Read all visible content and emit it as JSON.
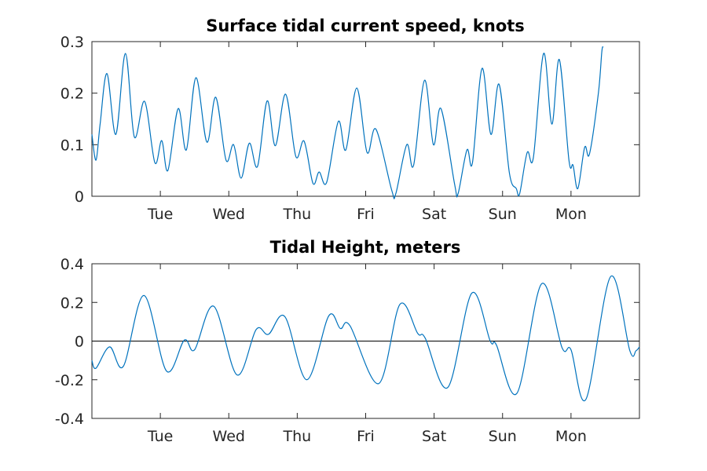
{
  "colors": {
    "series": "#0072bd",
    "axis": "#262626",
    "zero_line": "#000000"
  },
  "chart_data": [
    {
      "type": "line",
      "title": "Surface tidal current speed, knots",
      "xlabel": "",
      "ylabel": "",
      "x_unit": "days",
      "xlim": [
        0,
        8
      ],
      "ylim": [
        0,
        0.3
      ],
      "y_ticks": [
        0,
        0.1,
        0.2,
        0.3
      ],
      "y_tick_labels": [
        "0",
        "0.1",
        "0.2",
        "0.3"
      ],
      "x_ticks": [
        1,
        2,
        3,
        4,
        5,
        6,
        7
      ],
      "x_tick_labels": [
        "Tue",
        "Wed",
        "Thu",
        "Fri",
        "Sat",
        "Sun",
        "Mon"
      ],
      "grid": false,
      "series": [
        {
          "points": [
            [
              0,
              0.12
            ],
            [
              0.06,
              0.07
            ],
            [
              0.12,
              0.14
            ],
            [
              0.22,
              0.238
            ],
            [
              0.35,
              0.12
            ],
            [
              0.49,
              0.277
            ],
            [
              0.62,
              0.115
            ],
            [
              0.77,
              0.184
            ],
            [
              0.92,
              0.065
            ],
            [
              1.02,
              0.108
            ],
            [
              1.11,
              0.05
            ],
            [
              1.26,
              0.17
            ],
            [
              1.38,
              0.09
            ],
            [
              1.52,
              0.23
            ],
            [
              1.68,
              0.105
            ],
            [
              1.81,
              0.192
            ],
            [
              1.96,
              0.07
            ],
            [
              2.07,
              0.1
            ],
            [
              2.18,
              0.035
            ],
            [
              2.3,
              0.103
            ],
            [
              2.42,
              0.058
            ],
            [
              2.56,
              0.185
            ],
            [
              2.68,
              0.098
            ],
            [
              2.83,
              0.198
            ],
            [
              2.98,
              0.077
            ],
            [
              3.1,
              0.107
            ],
            [
              3.23,
              0.025
            ],
            [
              3.32,
              0.047
            ],
            [
              3.43,
              0.027
            ],
            [
              3.6,
              0.145
            ],
            [
              3.71,
              0.09
            ],
            [
              3.87,
              0.21
            ],
            [
              4.02,
              0.085
            ],
            [
              4.15,
              0.13
            ],
            [
              4.38,
              0.012
            ],
            [
              4.44,
              0.005
            ],
            [
              4.6,
              0.1
            ],
            [
              4.7,
              0.06
            ],
            [
              4.86,
              0.225
            ],
            [
              4.99,
              0.1
            ],
            [
              5.1,
              0.17
            ],
            [
              5.3,
              0.023
            ],
            [
              5.35,
              0.005
            ],
            [
              5.48,
              0.09
            ],
            [
              5.56,
              0.065
            ],
            [
              5.7,
              0.248
            ],
            [
              5.83,
              0.12
            ],
            [
              5.95,
              0.217
            ],
            [
              6.1,
              0.045
            ],
            [
              6.2,
              0.015
            ],
            [
              6.25,
              0.005
            ],
            [
              6.36,
              0.085
            ],
            [
              6.45,
              0.075
            ],
            [
              6.6,
              0.277
            ],
            [
              6.72,
              0.14
            ],
            [
              6.83,
              0.265
            ],
            [
              6.97,
              0.07
            ],
            [
              7.03,
              0.06
            ],
            [
              7.1,
              0.015
            ],
            [
              7.2,
              0.095
            ],
            [
              7.27,
              0.082
            ],
            [
              7.4,
              0.2
            ],
            [
              7.45,
              0.28
            ],
            [
              7.47,
              0.29
            ]
          ]
        }
      ]
    },
    {
      "type": "line",
      "title": "Tidal Height, meters",
      "xlabel": "",
      "ylabel": "",
      "x_unit": "days",
      "xlim": [
        0,
        8
      ],
      "ylim": [
        -0.4,
        0.4
      ],
      "y_ticks": [
        -0.4,
        -0.2,
        0,
        0.2,
        0.4
      ],
      "y_tick_labels": [
        "-0.4",
        "-0.2",
        "0",
        "0.2",
        "0.4"
      ],
      "x_ticks": [
        1,
        2,
        3,
        4,
        5,
        6,
        7
      ],
      "x_tick_labels": [
        "Tue",
        "Wed",
        "Thu",
        "Fri",
        "Sat",
        "Sun",
        "Mon"
      ],
      "grid": false,
      "reference_line_y": 0,
      "series": [
        {
          "points": [
            [
              0,
              -0.1
            ],
            [
              0.06,
              -0.14
            ],
            [
              0.26,
              -0.03
            ],
            [
              0.46,
              -0.13
            ],
            [
              0.76,
              0.236
            ],
            [
              1.09,
              -0.155
            ],
            [
              1.35,
              0.005
            ],
            [
              1.5,
              -0.045
            ],
            [
              1.78,
              0.18
            ],
            [
              2.12,
              -0.175
            ],
            [
              2.4,
              0.06
            ],
            [
              2.58,
              0.035
            ],
            [
              2.82,
              0.126
            ],
            [
              3.14,
              -0.2
            ],
            [
              3.46,
              0.13
            ],
            [
              3.63,
              0.065
            ],
            [
              3.77,
              0.08
            ],
            [
              4.19,
              -0.22
            ],
            [
              4.5,
              0.19
            ],
            [
              4.76,
              0.04
            ],
            [
              4.87,
              0.015
            ],
            [
              5.2,
              -0.24
            ],
            [
              5.55,
              0.248
            ],
            [
              5.82,
              0.0
            ],
            [
              5.91,
              -0.02
            ],
            [
              6.21,
              -0.27
            ],
            [
              6.57,
              0.296
            ],
            [
              6.87,
              -0.035
            ],
            [
              7.0,
              -0.045
            ],
            [
              7.22,
              -0.3
            ],
            [
              7.58,
              0.334
            ],
            [
              7.86,
              -0.05
            ],
            [
              7.95,
              -0.05
            ],
            [
              8.0,
              -0.03
            ]
          ]
        }
      ]
    }
  ]
}
